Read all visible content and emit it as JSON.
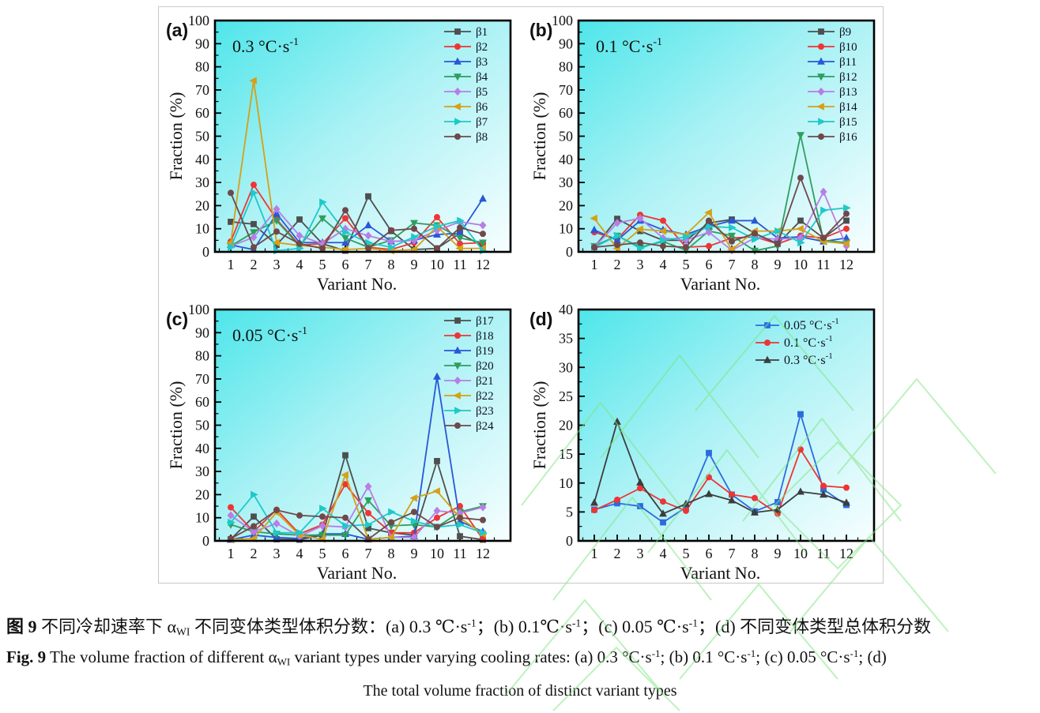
{
  "chart_data": [
    {
      "type": "line",
      "panel_label": "(a)",
      "annotation": "0.3 °C·s",
      "annotation_sup": "-1",
      "xlabel": "Variant No.",
      "ylabel": "Fraction (%)",
      "ylim": [
        0,
        100
      ],
      "ytick_step": 10,
      "grid": false,
      "legend_position": "top-right",
      "categories": [
        1,
        2,
        3,
        4,
        5,
        6,
        7,
        8,
        9,
        10,
        11,
        12
      ],
      "series": [
        {
          "name": "β1",
          "color": "#4e4e4e",
          "marker": "square",
          "values": [
            13,
            12,
            3,
            14,
            3.5,
            0.5,
            24,
            9,
            1,
            1.5,
            8,
            2.5
          ]
        },
        {
          "name": "β2",
          "color": "#ee3535",
          "marker": "circle",
          "values": [
            4.5,
            29,
            14,
            3,
            3.5,
            14.5,
            2,
            1,
            4,
            15,
            3.5,
            4
          ]
        },
        {
          "name": "β3",
          "color": "#2957d8",
          "marker": "triangle-up",
          "values": [
            3,
            1,
            16.5,
            4,
            4,
            4,
            11.5,
            4.5,
            5,
            7.5,
            8,
            23
          ]
        },
        {
          "name": "β4",
          "color": "#2f9e60",
          "marker": "triangle-down",
          "values": [
            2.5,
            8.5,
            13.5,
            2.5,
            14.5,
            6,
            2,
            5,
            12.5,
            11.5,
            6,
            4
          ]
        },
        {
          "name": "β5",
          "color": "#b97de6",
          "marker": "diamond",
          "values": [
            2.5,
            6.3,
            18.5,
            7,
            3.5,
            10,
            7,
            4.5,
            5,
            9.3,
            13,
            11.5
          ]
        },
        {
          "name": "β6",
          "color": "#d6a017",
          "marker": "triangle-left",
          "values": [
            4,
            74,
            4,
            2.8,
            2,
            1,
            1.5,
            0.5,
            1,
            11,
            1.5,
            1.5
          ]
        },
        {
          "name": "β7",
          "color": "#1ec9c9",
          "marker": "triangle-right",
          "values": [
            2,
            25.5,
            0.5,
            1.5,
            21.5,
            8.5,
            4,
            2,
            6.5,
            11,
            13.5,
            0.5
          ]
        },
        {
          "name": "β8",
          "color": "#6f484a",
          "marker": "circle",
          "values": [
            25.5,
            2,
            8.8,
            3.5,
            1.5,
            18,
            1.5,
            9.3,
            10,
            1.5,
            10.5,
            7.8
          ]
        }
      ]
    },
    {
      "type": "line",
      "panel_label": "(b)",
      "annotation": "0.1 °C·s",
      "annotation_sup": "-1",
      "xlabel": "Variant No.",
      "ylabel": "Fraction (%)",
      "ylim": [
        0,
        100
      ],
      "ytick_step": 10,
      "grid": false,
      "legend_position": "top-right",
      "categories": [
        1,
        2,
        3,
        4,
        5,
        6,
        7,
        8,
        9,
        10,
        11,
        12
      ],
      "series": [
        {
          "name": "β9",
          "color": "#4e4e4e",
          "marker": "square",
          "values": [
            2,
            14.3,
            9,
            5,
            5,
            12.5,
            14,
            8,
            3.5,
            13.5,
            6,
            13.5
          ]
        },
        {
          "name": "β10",
          "color": "#ee3535",
          "marker": "circle",
          "values": [
            8.5,
            5.5,
            16,
            13.5,
            2,
            2.5,
            6,
            6.5,
            3.5,
            7,
            6,
            10
          ]
        },
        {
          "name": "β11",
          "color": "#2957d8",
          "marker": "triangle-up",
          "values": [
            9.5,
            5,
            13.5,
            9.5,
            7.5,
            11,
            13.5,
            13.5,
            6,
            6.5,
            4.5,
            6
          ]
        },
        {
          "name": "β12",
          "color": "#2f9e60",
          "marker": "triangle-down",
          "values": [
            2.5,
            7,
            2,
            4.5,
            0.7,
            9,
            7,
            0.5,
            2.5,
            50.5,
            5,
            4
          ]
        },
        {
          "name": "β13",
          "color": "#b97de6",
          "marker": "diamond",
          "values": [
            2,
            12.5,
            14.5,
            6,
            5,
            8.5,
            0.7,
            6,
            5.5,
            6,
            26,
            2.5
          ]
        },
        {
          "name": "β14",
          "color": "#d6a017",
          "marker": "triangle-left",
          "values": [
            14.5,
            1.5,
            9.8,
            9,
            7.5,
            17,
            1,
            9,
            9,
            10,
            4.5,
            3.5
          ]
        },
        {
          "name": "β15",
          "color": "#1ec9c9",
          "marker": "triangle-right",
          "values": [
            2,
            7,
            1.5,
            5,
            6.5,
            11,
            10.5,
            5.5,
            9,
            4,
            18,
            19
          ]
        },
        {
          "name": "β16",
          "color": "#6f484a",
          "marker": "circle",
          "values": [
            2,
            3,
            4,
            2.5,
            2,
            13.5,
            4.5,
            8,
            3.5,
            32,
            6,
            16.5
          ]
        }
      ]
    },
    {
      "type": "line",
      "panel_label": "(c)",
      "annotation": "0.05 °C·s",
      "annotation_sup": "-1",
      "xlabel": "Variant No.",
      "ylabel": "Fraction (%)",
      "ylim": [
        0,
        100
      ],
      "ytick_step": 10,
      "grid": false,
      "legend_position": "top-right",
      "categories": [
        1,
        2,
        3,
        4,
        5,
        6,
        7,
        8,
        9,
        10,
        11,
        12
      ],
      "series": [
        {
          "name": "β17",
          "color": "#4e4e4e",
          "marker": "square",
          "values": [
            0.7,
            10.5,
            0.7,
            0.5,
            2.5,
            37,
            5.5,
            3.5,
            2.5,
            34.5,
            2,
            0.5
          ]
        },
        {
          "name": "β18",
          "color": "#ee3535",
          "marker": "circle",
          "values": [
            14.5,
            4,
            13.5,
            3,
            7,
            24.5,
            12,
            3.5,
            3.5,
            10,
            15,
            0.7
          ]
        },
        {
          "name": "β19",
          "color": "#2957d8",
          "marker": "triangle-up",
          "values": [
            0.5,
            2.5,
            1.5,
            1,
            3,
            3,
            0.7,
            1.5,
            2,
            71,
            8.5,
            4
          ]
        },
        {
          "name": "β20",
          "color": "#2f9e60",
          "marker": "triangle-down",
          "values": [
            7,
            4,
            3,
            2.5,
            2.5,
            2.5,
            17.5,
            6.5,
            7,
            6,
            12.5,
            15
          ]
        },
        {
          "name": "β21",
          "color": "#b97de6",
          "marker": "diamond",
          "values": [
            11,
            4,
            7.5,
            2,
            6.5,
            6,
            23.5,
            1.5,
            1.5,
            13,
            12,
            14.5
          ]
        },
        {
          "name": "β22",
          "color": "#d6a017",
          "marker": "triangle-left",
          "values": [
            0.5,
            1,
            12.3,
            2.5,
            0.7,
            28.5,
            0.7,
            1.5,
            18.5,
            21.5,
            10,
            3
          ]
        },
        {
          "name": "β23",
          "color": "#1ec9c9",
          "marker": "triangle-right",
          "values": [
            8,
            20,
            3.5,
            3.5,
            14,
            6.5,
            7,
            12.5,
            8.5,
            6,
            7,
            3.5
          ]
        },
        {
          "name": "β24",
          "color": "#6f484a",
          "marker": "circle",
          "values": [
            1,
            6.3,
            13.3,
            11,
            10.5,
            10,
            0.7,
            8,
            12.5,
            6,
            10,
            9
          ]
        }
      ]
    },
    {
      "type": "line",
      "panel_label": "(d)",
      "annotation": "",
      "annotation_sup": "",
      "xlabel": "Variant No.",
      "ylabel": "Fraction (%)",
      "ylim": [
        0,
        40
      ],
      "ytick_step": 5,
      "grid": false,
      "legend_position": "top-right",
      "categories": [
        1,
        2,
        3,
        4,
        5,
        6,
        7,
        8,
        9,
        10,
        11,
        12
      ],
      "series": [
        {
          "name": "0.05 °C·s",
          "name_sup": "-1",
          "color": "#2b6bdf",
          "marker": "square",
          "values": [
            5.4,
            6.5,
            6.0,
            3.2,
            5.8,
            15.2,
            8.0,
            5.1,
            6.7,
            21.9,
            8.9,
            6.2
          ]
        },
        {
          "name": "0.1 °C·s",
          "name_sup": "-1",
          "color": "#ee3535",
          "marker": "circle",
          "values": [
            5.3,
            7.1,
            9.1,
            6.8,
            5.2,
            11.0,
            8.0,
            7.4,
            4.7,
            15.8,
            9.5,
            9.2
          ]
        },
        {
          "name": "0.3 °C·s",
          "name_sup": "-1",
          "color": "#3d3d3d",
          "marker": "triangle-up",
          "values": [
            6.6,
            20.6,
            10.1,
            4.7,
            6.4,
            8.1,
            7.0,
            4.9,
            5.4,
            8.5,
            8.0,
            6.6
          ]
        }
      ]
    }
  ],
  "style": {
    "plot_gradient": [
      "#4ee6ea",
      "#a8f1f4",
      "#f7feff"
    ],
    "frame_color": "#000000",
    "watermark_color": "#7de57d"
  },
  "caption": {
    "zh": [
      {
        "t": "图 9",
        "s": "b"
      },
      {
        "t": "  不同冷却速率下 α",
        "s": "n"
      },
      {
        "t": "WI",
        "s": "sub"
      },
      {
        "t": " 不同变体类型体积分数：(a) 0.3 ℃·s",
        "s": "n"
      },
      {
        "t": "-1",
        "s": "sup"
      },
      {
        "t": "；(b) 0.1℃·s",
        "s": "n"
      },
      {
        "t": "-1",
        "s": "sup"
      },
      {
        "t": "；(c) 0.05 ℃·s",
        "s": "n"
      },
      {
        "t": "-1",
        "s": "sup"
      },
      {
        "t": "；(d) 不同变体类型总体积分数",
        "s": "n"
      }
    ],
    "en": [
      {
        "t": "Fig. 9",
        "s": "b"
      },
      {
        "t": "  The volume fraction of different α",
        "s": "n"
      },
      {
        "t": "WI",
        "s": "sub"
      },
      {
        "t": " variant types under varying cooling rates: (a) 0.3 °C·s",
        "s": "n"
      },
      {
        "t": "-1",
        "s": "sup"
      },
      {
        "t": "; (b) 0.1 °C·s",
        "s": "n"
      },
      {
        "t": "-1",
        "s": "sup"
      },
      {
        "t": "; (c) 0.05 °C·s",
        "s": "n"
      },
      {
        "t": "-1",
        "s": "sup"
      },
      {
        "t": "; (d)",
        "s": "n"
      }
    ],
    "en2": "The total volume fraction of distinct variant types"
  }
}
